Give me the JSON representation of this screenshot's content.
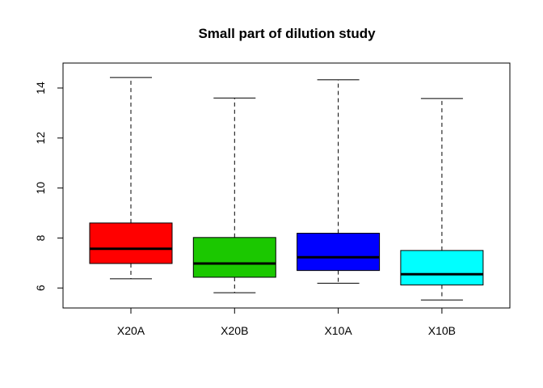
{
  "chart_data": {
    "type": "boxplot",
    "title": "Small part of dilution study",
    "xlabel": "",
    "ylabel": "",
    "ylim": [
      5.2,
      15.0
    ],
    "yticks": [
      6,
      8,
      10,
      12,
      14
    ],
    "grid": false,
    "series": [
      {
        "name": "X20A",
        "color": "#ff0000",
        "min": 6.37,
        "q1": 6.98,
        "median": 7.57,
        "q3": 8.6,
        "max": 14.42
      },
      {
        "name": "X20B",
        "color": "#1bc800",
        "min": 5.81,
        "q1": 6.43,
        "median": 6.98,
        "q3": 8.02,
        "max": 13.6
      },
      {
        "name": "X10A",
        "color": "#0000ff",
        "min": 6.19,
        "q1": 6.7,
        "median": 7.23,
        "q3": 8.19,
        "max": 14.33
      },
      {
        "name": "X10B",
        "color": "#00ffff",
        "min": 5.52,
        "q1": 6.12,
        "median": 6.55,
        "q3": 7.5,
        "max": 13.58
      }
    ]
  }
}
